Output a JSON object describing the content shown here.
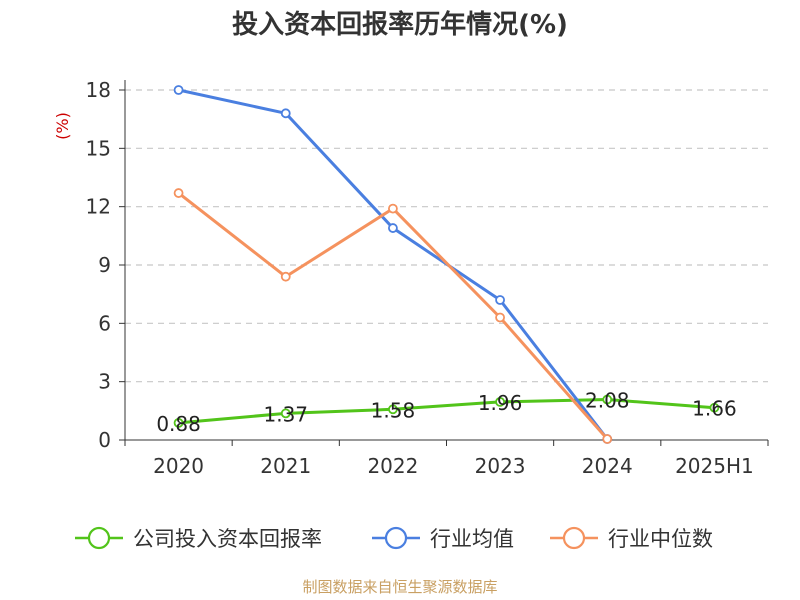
{
  "chart_data": {
    "type": "line",
    "title": "投入资本回报率历年情况(%)",
    "ylabel": "(%)",
    "xlabel": "",
    "categories": [
      "2020",
      "2021",
      "2022",
      "2023",
      "2024",
      "2025H1"
    ],
    "ylim": [
      0,
      18
    ],
    "yticks": [
      0,
      3,
      6,
      9,
      12,
      15,
      18
    ],
    "grid": true,
    "legend_position": "bottom",
    "series": [
      {
        "name": "公司投入资本回报率",
        "color": "#52c41a",
        "values": [
          0.88,
          1.37,
          1.58,
          1.96,
          2.08,
          1.66
        ],
        "labels": [
          "0.88",
          "1.37",
          "1.58",
          "1.96",
          "2.08",
          "1.66"
        ]
      },
      {
        "name": "行业均值",
        "color": "#4a7fe0",
        "values": [
          18.0,
          16.8,
          10.9,
          7.2,
          0.05,
          null
        ]
      },
      {
        "name": "行业中位数",
        "color": "#f5925e",
        "values": [
          12.7,
          8.4,
          11.9,
          6.3,
          0.05,
          null
        ]
      }
    ],
    "source": "制图数据来自恒生聚源数据库"
  }
}
